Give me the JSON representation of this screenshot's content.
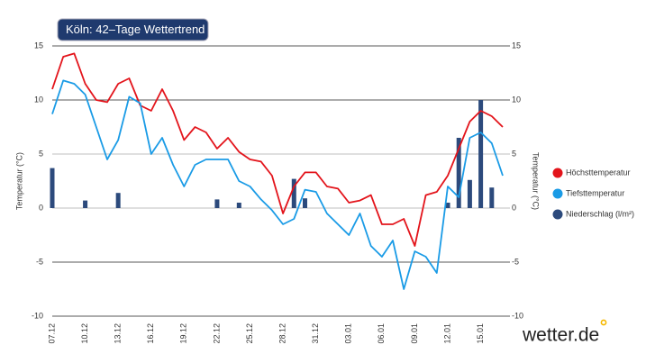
{
  "chart_data": {
    "type": "line",
    "title": "Köln: 42–Tage Wettertrend",
    "brand": "wetter.de",
    "ylabel": "Temperatur (°C)",
    "y2label": "Temperatur (°C)",
    "categories": [
      "07.12",
      null,
      null,
      "10.12",
      null,
      null,
      "13.12",
      null,
      null,
      "16.12",
      null,
      null,
      "19.12",
      null,
      null,
      "22.12",
      null,
      null,
      "25.12",
      null,
      null,
      "28.12",
      null,
      null,
      "31.12",
      null,
      null,
      "03.01",
      null,
      null,
      "06.01",
      null,
      null,
      "09.01",
      null,
      null,
      "12.01",
      null,
      null,
      "15.01",
      null,
      null
    ],
    "series": [
      {
        "name": "Höchsttemperatur",
        "type": "line",
        "color": "#e3141b",
        "values": [
          11,
          14,
          14.3,
          11.5,
          10,
          9.8,
          11.5,
          12,
          9.5,
          9,
          11,
          9,
          6.3,
          7.5,
          7,
          5.5,
          6.5,
          5.2,
          4.5,
          4.3,
          3,
          -0.5,
          2,
          3.3,
          3.3,
          2,
          1.8,
          0.5,
          0.7,
          1.2,
          -1.5,
          -1.5,
          -1,
          -3.5,
          1.2,
          1.5,
          3,
          5.5,
          8,
          9,
          8.5,
          7.5
        ]
      },
      {
        "name": "Tiefsttemperatur",
        "type": "line",
        "color": "#1a9be6",
        "values": [
          8.7,
          11.8,
          11.5,
          10.5,
          7.5,
          4.5,
          6.3,
          10.3,
          9.7,
          5,
          6.5,
          4,
          2,
          4,
          4.5,
          4.5,
          4.5,
          2.5,
          2,
          0.8,
          -0.2,
          -1.5,
          -1,
          1.7,
          1.5,
          -0.5,
          -1.5,
          -2.5,
          -0.5,
          -3.5,
          -4.5,
          -3,
          -7.5,
          -4,
          -4.5,
          -6,
          2,
          1,
          6.5,
          7,
          6,
          3
        ]
      },
      {
        "name": "Niederschlag (l/m²)",
        "type": "bar",
        "axis": "y2",
        "color": "#2c4a7c",
        "values": [
          3.7,
          0,
          0,
          0.7,
          0,
          0,
          1.4,
          0,
          0,
          0,
          0,
          0,
          0,
          0,
          0,
          0.8,
          0,
          0.5,
          0,
          0,
          0,
          0,
          2.7,
          0.9,
          0,
          0,
          0,
          0,
          0,
          0,
          0,
          0,
          0,
          0,
          0,
          0,
          0.5,
          6.5,
          2.6,
          10,
          1.9,
          0
        ]
      }
    ],
    "ylim": [
      -10,
      15
    ],
    "yticks": [
      -10,
      -5,
      0,
      5,
      10,
      15
    ],
    "y2lim": [
      -10,
      15
    ],
    "y2ticks": [
      -10,
      -5,
      0,
      5,
      10,
      15
    ],
    "grid": true,
    "legend": "right"
  }
}
